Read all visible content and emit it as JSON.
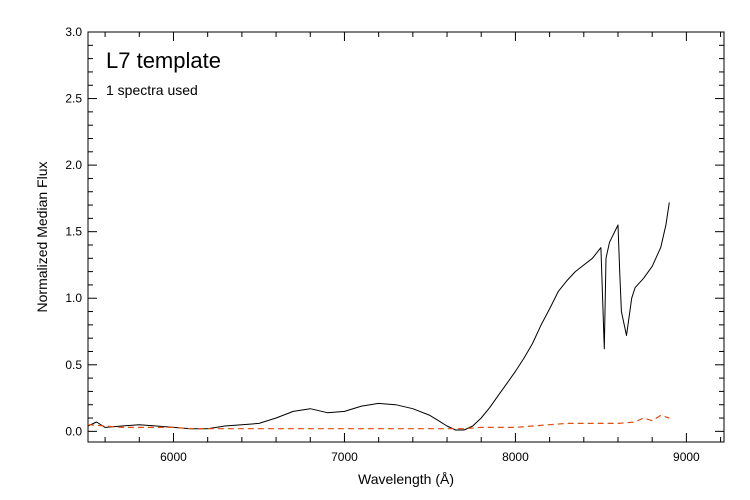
{
  "chart_data": {
    "type": "line",
    "title": "L7 template",
    "subtitle": "1 spectra used",
    "xlabel": "Wavelength (Å)",
    "ylabel": "Normalized Median Flux",
    "xlim": [
      5500,
      9220
    ],
    "ylim": [
      -0.08,
      3.0
    ],
    "x_ticks": [
      6000,
      7000,
      8000,
      9000
    ],
    "x_tick_labels": [
      "6000",
      "7000",
      "8000",
      "9000"
    ],
    "y_ticks": [
      0.0,
      0.5,
      1.0,
      1.5,
      2.0,
      2.5,
      3.0
    ],
    "y_tick_labels": [
      "0.0",
      "0.5",
      "1.0",
      "1.5",
      "2.0",
      "2.5",
      "3.0"
    ],
    "grid": false,
    "series": [
      {
        "color": "#000000",
        "dash": "solid",
        "x": [
          5500,
          5550,
          5600,
          5700,
          5800,
          5900,
          6000,
          6100,
          6200,
          6300,
          6400,
          6500,
          6600,
          6700,
          6800,
          6900,
          7000,
          7100,
          7200,
          7300,
          7400,
          7500,
          7550,
          7600,
          7650,
          7700,
          7750,
          7800,
          7850,
          7900,
          7950,
          8000,
          8050,
          8100,
          8150,
          8200,
          8250,
          8300,
          8350,
          8400,
          8450,
          8500,
          8520,
          8530,
          8550,
          8600,
          8610,
          8620,
          8650,
          8680,
          8700,
          8750,
          8800,
          8850,
          8880,
          8900
        ],
        "values": [
          0.04,
          0.07,
          0.03,
          0.04,
          0.05,
          0.04,
          0.03,
          0.02,
          0.02,
          0.04,
          0.05,
          0.06,
          0.1,
          0.15,
          0.17,
          0.14,
          0.15,
          0.19,
          0.21,
          0.2,
          0.17,
          0.12,
          0.08,
          0.04,
          0.01,
          0.01,
          0.04,
          0.1,
          0.18,
          0.27,
          0.36,
          0.45,
          0.55,
          0.66,
          0.8,
          0.92,
          1.05,
          1.13,
          1.2,
          1.25,
          1.3,
          1.38,
          0.62,
          1.3,
          1.42,
          1.55,
          1.2,
          0.9,
          0.72,
          1.0,
          1.08,
          1.15,
          1.24,
          1.38,
          1.55,
          1.72
        ]
      },
      {
        "color": "#e05010",
        "dash": "dashed",
        "x": [
          5500,
          5600,
          5700,
          5800,
          5900,
          6000,
          6100,
          6200,
          6300,
          6400,
          6500,
          6600,
          6700,
          6800,
          6900,
          7000,
          7100,
          7200,
          7300,
          7400,
          7500,
          7600,
          7700,
          7800,
          7900,
          8000,
          8100,
          8200,
          8300,
          8400,
          8500,
          8600,
          8700,
          8750,
          8800,
          8850,
          8900
        ],
        "values": [
          0.05,
          0.04,
          0.03,
          0.03,
          0.03,
          0.03,
          0.02,
          0.02,
          0.02,
          0.02,
          0.02,
          0.02,
          0.02,
          0.02,
          0.02,
          0.02,
          0.02,
          0.02,
          0.02,
          0.02,
          0.02,
          0.02,
          0.02,
          0.03,
          0.03,
          0.03,
          0.04,
          0.05,
          0.06,
          0.06,
          0.06,
          0.06,
          0.07,
          0.1,
          0.08,
          0.12,
          0.1
        ]
      }
    ]
  }
}
